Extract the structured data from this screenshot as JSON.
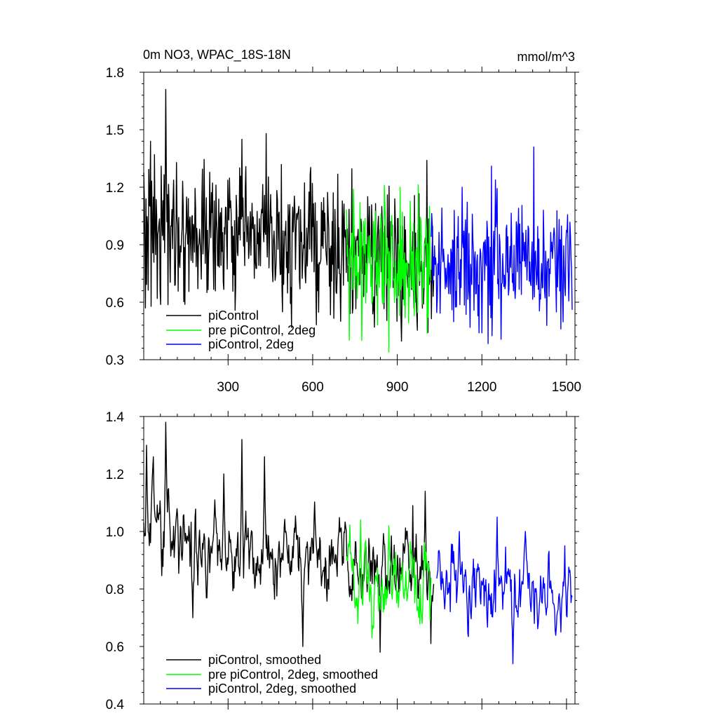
{
  "chart_data": [
    {
      "type": "line",
      "title_left": "0m NO3, WPAC_18S-18N",
      "title_right": "mmol/m^3",
      "xlim": [
        1,
        1530
      ],
      "ylim": [
        0.3,
        1.8
      ],
      "x_ticks": [
        300,
        600,
        900,
        1200,
        1500
      ],
      "x_tick_labels": [
        "300",
        "600",
        "900",
        "1200",
        "1500"
      ],
      "y_ticks": [
        0.3,
        0.6,
        0.9,
        1.2,
        1.5,
        1.8
      ],
      "y_tick_labels": [
        "0.3",
        "0.6",
        "0.9",
        "1.2",
        "1.5",
        "1.8"
      ],
      "legend_position": "bottom-left",
      "series": [
        {
          "name": "piControl",
          "color": "#000000",
          "x_range": [
            1,
            1030
          ],
          "mean_start": 1.0,
          "mean_end": 0.8,
          "amplitude": 0.17,
          "peaks": [
            [
              80,
              1.71
            ],
            [
              25,
              1.44
            ],
            [
              40,
              1.37
            ],
            [
              3,
              1.15
            ],
            [
              8,
              0.57
            ],
            [
              350,
              1.45
            ],
            [
              435,
              1.48
            ],
            [
              600,
              1.22
            ],
            [
              1005,
              1.34
            ],
            [
              865,
              1.16
            ],
            [
              700,
              0.5
            ],
            [
              900,
              0.5
            ]
          ]
        },
        {
          "name": "pre piControl, 2deg",
          "color": "#00ff00",
          "x_range": [
            720,
            1020
          ],
          "mean_start": 0.82,
          "mean_end": 0.82,
          "amplitude": 0.17,
          "peaks": [
            [
              870,
              0.34
            ],
            [
              775,
              0.4
            ],
            [
              855,
              1.21
            ],
            [
              910,
              1.2
            ],
            [
              745,
              1.19
            ]
          ]
        },
        {
          "name": "piControl, 2deg",
          "color": "#0000ff",
          "x_range": [
            1020,
            1520
          ],
          "mean_start": 0.8,
          "mean_end": 0.8,
          "amplitude": 0.16,
          "peaks": [
            [
              1385,
              1.41
            ],
            [
              1235,
              1.31
            ],
            [
              1200,
              0.44
            ],
            [
              1480,
              0.46
            ],
            [
              1130,
              1.2
            ],
            [
              1520,
              0.56
            ]
          ]
        }
      ]
    },
    {
      "type": "line",
      "xlim": [
        1,
        1530
      ],
      "ylim": [
        0.4,
        1.4
      ],
      "x_ticks": [
        300,
        600,
        900,
        1200,
        1500
      ],
      "y_ticks": [
        0.4,
        0.6,
        0.8,
        1.0,
        1.2,
        1.4
      ],
      "y_tick_labels": [
        "0.4",
        "0.6",
        "0.8",
        "1.0",
        "1.2",
        "1.4"
      ],
      "legend_position": "bottom-left",
      "series": [
        {
          "name": "piControl, smoothed",
          "color": "#000000",
          "x_range": [
            1,
            1030
          ],
          "mean_start": 1.0,
          "mean_end": 0.83,
          "amplitude": 0.09,
          "peaks": [
            [
              80,
              1.38
            ],
            [
              12,
              1.3
            ],
            [
              35,
              1.26
            ],
            [
              350,
              1.32
            ],
            [
              430,
              1.26
            ],
            [
              285,
              1.2
            ],
            [
              565,
              0.6
            ],
            [
              175,
              0.7
            ],
            [
              1000,
              1.14
            ],
            [
              955,
              1.09
            ],
            [
              840,
              0.58
            ],
            [
              1020,
              0.61
            ]
          ]
        },
        {
          "name": "pre piControl, 2deg, smoothed",
          "color": "#00ff00",
          "x_range": [
            720,
            1020
          ],
          "mean_start": 0.83,
          "mean_end": 0.83,
          "amplitude": 0.09,
          "peaks": [
            [
              770,
              1.04
            ],
            [
              870,
              1.02
            ],
            [
              810,
              0.63
            ],
            [
              760,
              0.68
            ]
          ]
        },
        {
          "name": "piControl, 2deg, smoothed",
          "color": "#0000ff",
          "x_range": [
            1040,
            1520
          ],
          "mean_start": 0.82,
          "mean_end": 0.82,
          "amplitude": 0.08,
          "peaks": [
            [
              1255,
              1.05
            ],
            [
              1355,
              1.0
            ],
            [
              1310,
              0.54
            ],
            [
              1480,
              0.65
            ],
            [
              1495,
              0.95
            ],
            [
              1120,
              1.0
            ]
          ]
        }
      ]
    }
  ]
}
